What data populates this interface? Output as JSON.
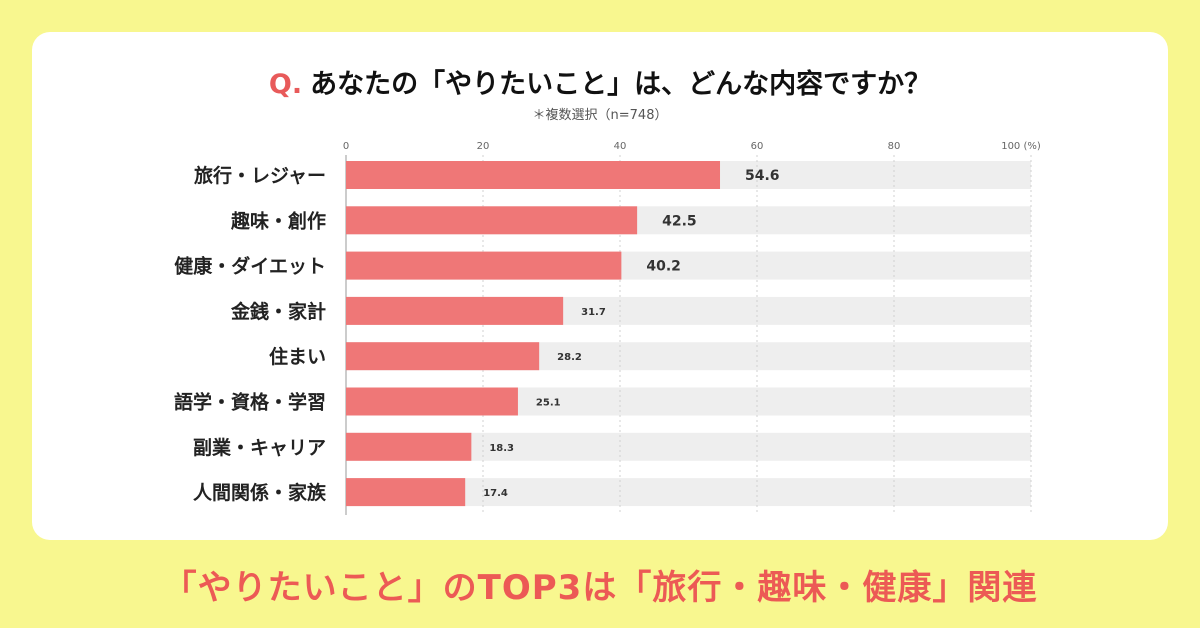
{
  "title": {
    "prefix": "Q.",
    "text": "あなたの「やりたいこと」は、どんな内容ですか？"
  },
  "subtitle": "＊複数選択（n=748）",
  "footer": "「やりたいこと」のTOP3は「旅行・趣味・健康」関連",
  "colors": {
    "bar": "#ef7777",
    "track": "#eeeeee",
    "background": "#f8f78f",
    "accent": "#e85a5a"
  },
  "chart_data": {
    "type": "bar",
    "orientation": "horizontal",
    "categories": [
      "旅行・レジャー",
      "趣味・創作",
      "健康・ダイエット",
      "金銭・家計",
      "住まい",
      "語学・資格・学習",
      "副業・キャリア",
      "人間関係・家族"
    ],
    "values": [
      54.6,
      42.5,
      40.2,
      31.7,
      28.2,
      25.1,
      18.3,
      17.4
    ],
    "xlim": [
      0,
      100
    ],
    "xticks": [
      "0",
      "20",
      "40",
      "60",
      "80",
      "100 (%)"
    ],
    "grid": true
  }
}
